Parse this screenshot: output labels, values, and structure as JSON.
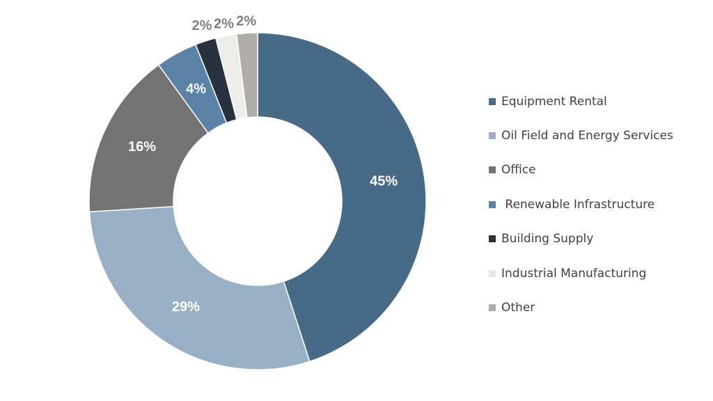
{
  "chart_data": {
    "type": "pie",
    "variant": "donut",
    "legend_position": "right",
    "slices": [
      {
        "label": "Equipment Rental",
        "value": 45,
        "display": "45%",
        "color": "#476A87",
        "label_color": "#FFFFFF"
      },
      {
        "label": "Oil Field and Energy Services",
        "value": 29,
        "display": "29%",
        "color": "#97B0C6",
        "label_color": "#FFFFFF"
      },
      {
        "label": "Office",
        "value": 16,
        "display": "16%",
        "color": "#737373",
        "label_color": "#FFFFFF"
      },
      {
        "label": " Renewable Infrastructure",
        "value": 4,
        "display": "4%",
        "color": "#5A83A7",
        "label_color": "#FFFFFF"
      },
      {
        "label": "Building Supply",
        "value": 2,
        "display": "2%",
        "color": "#27323E",
        "label_color": "#7F7F7F"
      },
      {
        "label": "Industrial Manufacturing",
        "value": 2,
        "display": "2%",
        "color": "#EDEEEA",
        "label_color": "#7F7F7F"
      },
      {
        "label": "Other",
        "value": 2,
        "display": "2%",
        "color": "#AEADAB",
        "label_color": "#7F7F7F"
      }
    ]
  }
}
